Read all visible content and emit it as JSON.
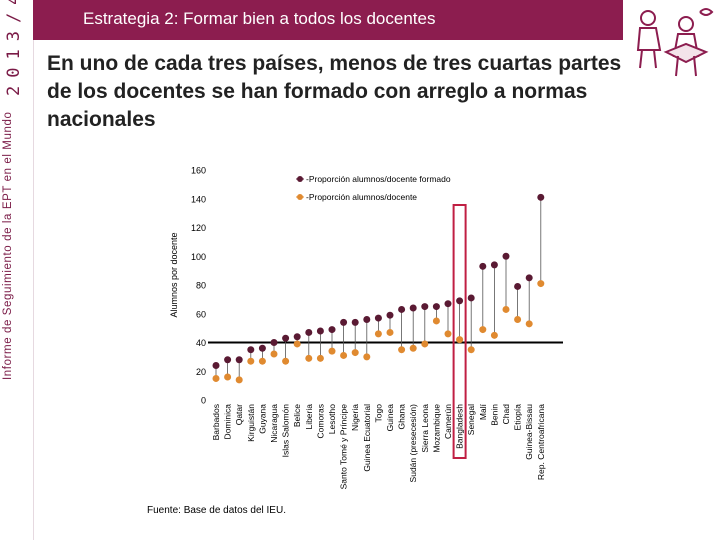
{
  "header": {
    "title": "Estrategia 2: Formar bien a todos los docentes"
  },
  "sidebar": {
    "report_name": "Informe de Seguimiento de la EPT en el Mundo",
    "year": "2013/4"
  },
  "subtitle": "En uno de cada tres países, menos de tres cuartas partes de los docentes se han formado con arreglo a normas nacionales",
  "logo": {
    "icon": "children-reading-icon"
  },
  "source": "Fuente: Base de datos del IEU.",
  "colors": {
    "header": "#8c1d4f",
    "trained": "#5a1a33",
    "all": "#e08a30",
    "highlight": "#c01f43",
    "line": "#000000"
  },
  "chart_data": {
    "type": "scatter",
    "ylabel": "Alumnos por docente",
    "ylim": [
      0,
      160
    ],
    "yticks": [
      0,
      20,
      40,
      60,
      80,
      100,
      120,
      140,
      160
    ],
    "reference_line": 40,
    "highlight": "Bangladesh",
    "series": [
      {
        "name": "Proporción alumnos/docente formado",
        "marker": "dark"
      },
      {
        "name": "Proporción alumnos/docente",
        "marker": "orange"
      }
    ],
    "categories": [
      "Barbados",
      "Dominica",
      "Qatar",
      "Kirguistán",
      "Guyana",
      "Nicaragua",
      "Islas Salomón",
      "Belice",
      "Liberia",
      "Comoras",
      "Lesotho",
      "Santo Tomé y Príncipe",
      "Nigeria",
      "Guinea Ecuatorial",
      "Togo",
      "Guinea",
      "Ghana",
      "Sudán (presecesión)",
      "Sierra Leona",
      "Mozambique",
      "Camerún",
      "Bangladesh",
      "Senegal",
      "Malí",
      "Benin",
      "Chad",
      "Etiopía",
      "Guinea-Bissau",
      "Rep. Centroafricana"
    ],
    "trained": [
      24,
      28,
      28,
      35,
      36,
      40,
      43,
      44,
      47,
      48,
      49,
      54,
      54,
      56,
      57,
      59,
      63,
      64,
      65,
      65,
      67,
      69,
      71,
      93,
      94,
      100,
      79,
      85,
      141
    ],
    "all": [
      15,
      16,
      14,
      27,
      27,
      32,
      27,
      39,
      29,
      29,
      34,
      31,
      33,
      30,
      46,
      47,
      35,
      36,
      39,
      55,
      46,
      42,
      35,
      49,
      45,
      63,
      56,
      53,
      81
    ]
  }
}
